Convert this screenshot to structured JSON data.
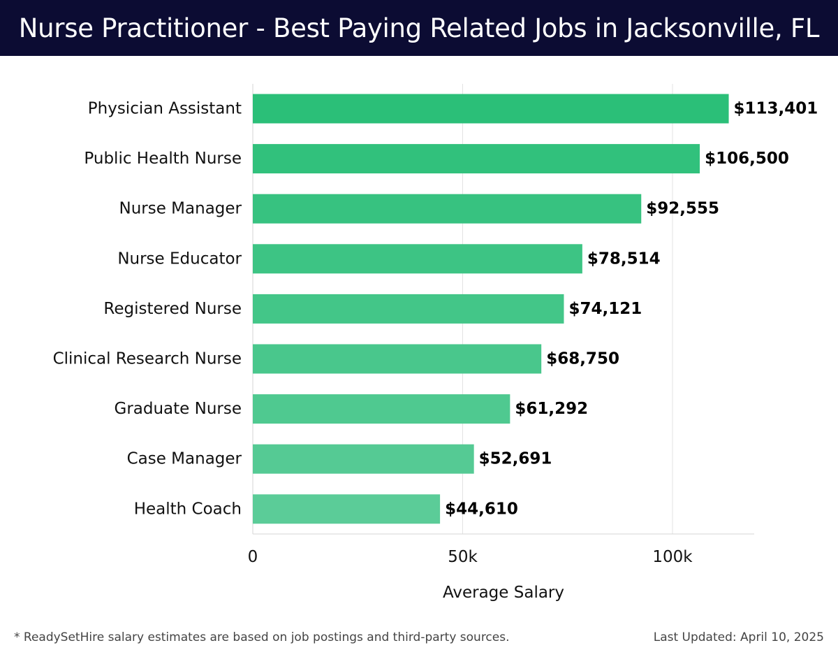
{
  "chart_data": {
    "type": "bar",
    "orientation": "horizontal",
    "title": "Nurse Practitioner - Best Paying Related Jobs in Jacksonville, FL",
    "xlabel": "Average Salary",
    "ylabel": "",
    "xlim": [
      0,
      120000
    ],
    "xticks": [
      0,
      50000,
      100000
    ],
    "xtick_labels": [
      "0",
      "50k",
      "100k"
    ],
    "grid": true,
    "categories": [
      "Physician Assistant",
      "Public Health Nurse",
      "Nurse Manager",
      "Nurse Educator",
      "Registered Nurse",
      "Clinical Research Nurse",
      "Graduate Nurse",
      "Case Manager",
      "Health Coach"
    ],
    "values": [
      113401,
      106500,
      92555,
      78514,
      74121,
      68750,
      61292,
      52691,
      44610
    ],
    "value_labels": [
      "$113,401",
      "$106,500",
      "$92,555",
      "$78,514",
      "$74,121",
      "$68,750",
      "$61,292",
      "$52,691",
      "$44,610"
    ],
    "bar_color_start": "#2bbf78",
    "bar_color_end": "#5bcc98"
  },
  "footer": {
    "note": "* ReadySetHire salary estimates are based on job postings and third-party sources.",
    "updated": "Last Updated: April 10, 2025"
  }
}
